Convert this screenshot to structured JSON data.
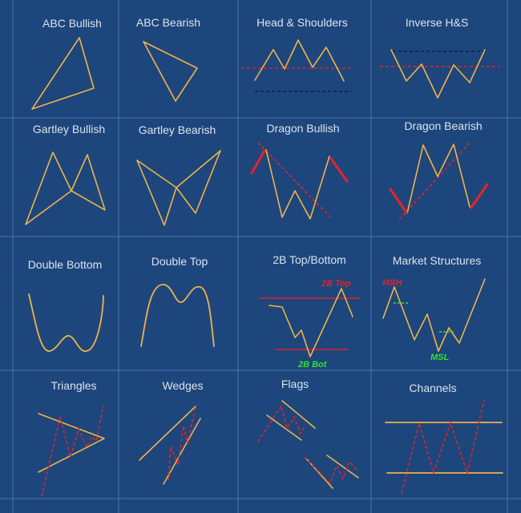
{
  "patterns": [
    {
      "title": "ABC Bullish",
      "icon": "abc-bullish-icon"
    },
    {
      "title": "ABC Bearish",
      "icon": "abc-bearish-icon"
    },
    {
      "title": "Head & Shoulders",
      "icon": "head-and-shoulders-icon"
    },
    {
      "title": "Inverse H&S",
      "icon": "inverse-head-and-shoulders-icon"
    },
    {
      "title": "Gartley Bullish",
      "icon": "gartley-bullish-icon"
    },
    {
      "title": "Gartley Bearish",
      "icon": "gartley-bearish-icon"
    },
    {
      "title": "Dragon Bullish",
      "icon": "dragon-bullish-icon"
    },
    {
      "title": "Dragon Bearish",
      "icon": "dragon-bearish-icon"
    },
    {
      "title": "Double Bottom",
      "icon": "double-bottom-icon"
    },
    {
      "title": "Double Top",
      "icon": "double-top-icon"
    },
    {
      "title": "2B Top/Bottom",
      "icon": "2b-top-bottom-icon"
    },
    {
      "title": "Market Structures",
      "icon": "market-structures-icon"
    },
    {
      "title": "Triangles",
      "icon": "triangles-icon"
    },
    {
      "title": "Wedges",
      "icon": "wedges-icon"
    },
    {
      "title": "Flags",
      "icon": "flags-icon"
    },
    {
      "title": "Channels",
      "icon": "channels-icon"
    }
  ],
  "annotations": {
    "two_b_top": "2B Top",
    "two_b_bot": "2B Bot",
    "msh": "MSH",
    "msl": "MSL"
  },
  "colors": {
    "background": "#1d467c",
    "grid": "#4f74a6",
    "pattern_line": "#f0b24a",
    "signal_red": "#e0242a",
    "signal_green": "#33e02f",
    "title_text": "#dbe3ee"
  }
}
